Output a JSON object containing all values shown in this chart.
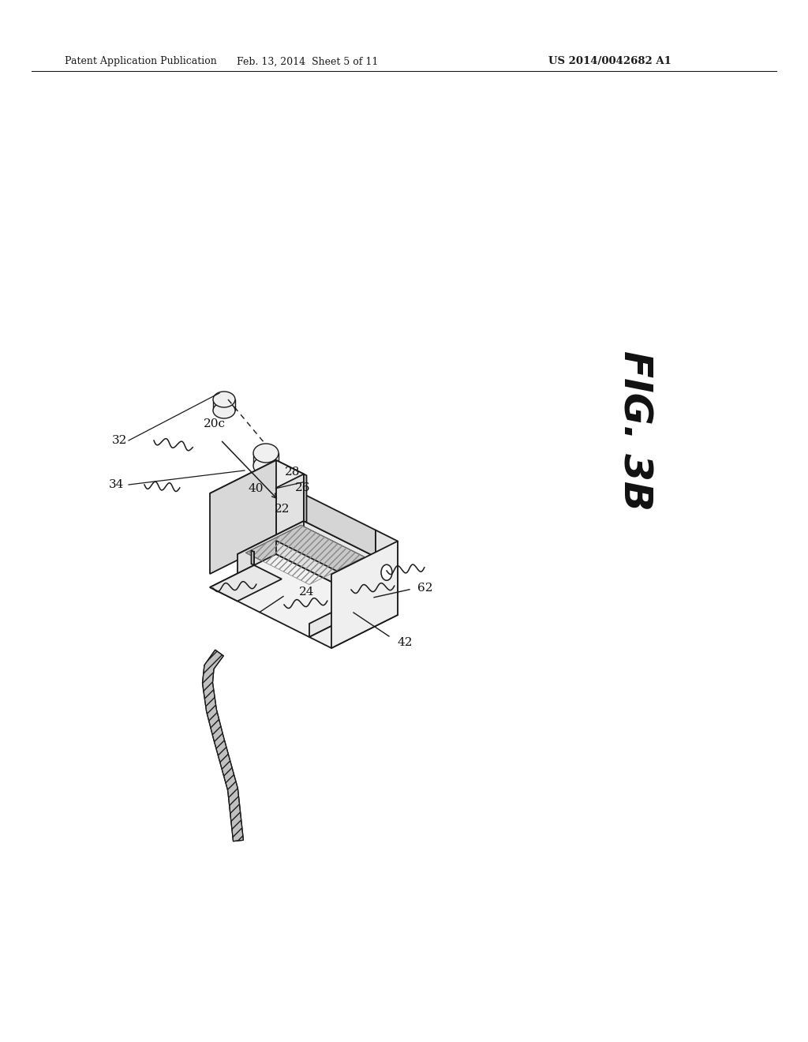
{
  "background_color": "#ffffff",
  "header_left": "Patent Application Publication",
  "header_center": "Feb. 13, 2014  Sheet 5 of 11",
  "header_right": "US 2014/0042682 A1",
  "fig_label": "FIG. 3B",
  "line_color": "#1a1a1a",
  "lw": 1.3
}
